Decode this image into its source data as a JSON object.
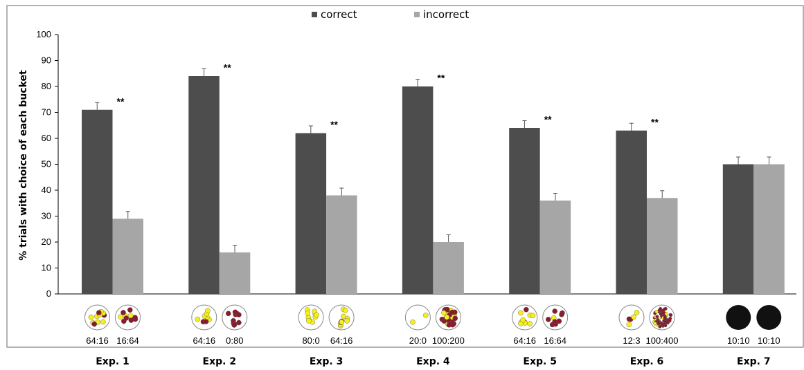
{
  "chart_data": {
    "type": "bar",
    "ylabel": "% trials with choice of each bucket",
    "ylim": [
      0,
      100
    ],
    "yticks": [
      "0",
      "10",
      "20",
      "30",
      "40",
      "50",
      "60",
      "70",
      "80",
      "90",
      "100"
    ],
    "legend": {
      "placement": "top-center"
    },
    "series": [
      {
        "name": "correct",
        "color": "#4d4d4d",
        "values": [
          71,
          84,
          62,
          80,
          64,
          63,
          50
        ],
        "errors": [
          2.8,
          2.8,
          2.8,
          2.8,
          2.8,
          2.8,
          2.8
        ]
      },
      {
        "name": "incorrect",
        "color": "#a6a6a6",
        "values": [
          29,
          16,
          38,
          20,
          36,
          37,
          50
        ],
        "errors": [
          2.8,
          2.8,
          2.8,
          2.8,
          2.8,
          2.8,
          2.8
        ]
      }
    ],
    "categories": [
      "Exp. 1",
      "Exp. 2",
      "Exp. 3",
      "Exp. 4",
      "Exp. 5",
      "Exp. 6",
      "Exp. 7"
    ],
    "significance": [
      "**",
      "**",
      "**",
      "**",
      "**",
      "**",
      ""
    ],
    "ratios": [
      [
        "64:16",
        "16:64"
      ],
      [
        "64:16",
        "0:80"
      ],
      [
        "80:0",
        "64:16"
      ],
      [
        "20:0",
        "100:200"
      ],
      [
        "64:16",
        "16:64"
      ],
      [
        "12:3",
        "100:400"
      ],
      [
        "10:10",
        "10:10"
      ]
    ],
    "bucket_icons": [
      [
        {
          "y": 8,
          "r": 3
        },
        {
          "y": 3,
          "r": 8
        }
      ],
      [
        {
          "y": 8,
          "r": 2
        },
        {
          "y": 0,
          "r": 10
        }
      ],
      [
        {
          "y": 10,
          "r": 0
        },
        {
          "y": 8,
          "r": 2
        }
      ],
      [
        {
          "y": 2,
          "r": 0
        },
        {
          "y": 10,
          "r": 20
        }
      ],
      [
        {
          "y": 8,
          "r": 2
        },
        {
          "y": 2,
          "r": 8
        }
      ],
      [
        {
          "y": 3,
          "r": 2
        },
        {
          "y": 12,
          "r": 45
        }
      ],
      [
        {
          "y": 0,
          "r": 0,
          "opaque": true
        },
        {
          "y": 0,
          "r": 0,
          "opaque": true
        }
      ]
    ],
    "colors": {
      "yellow_ball": "#f4f01c",
      "red_ball": "#8b1a2b",
      "opaque_bucket": "#111111"
    }
  }
}
